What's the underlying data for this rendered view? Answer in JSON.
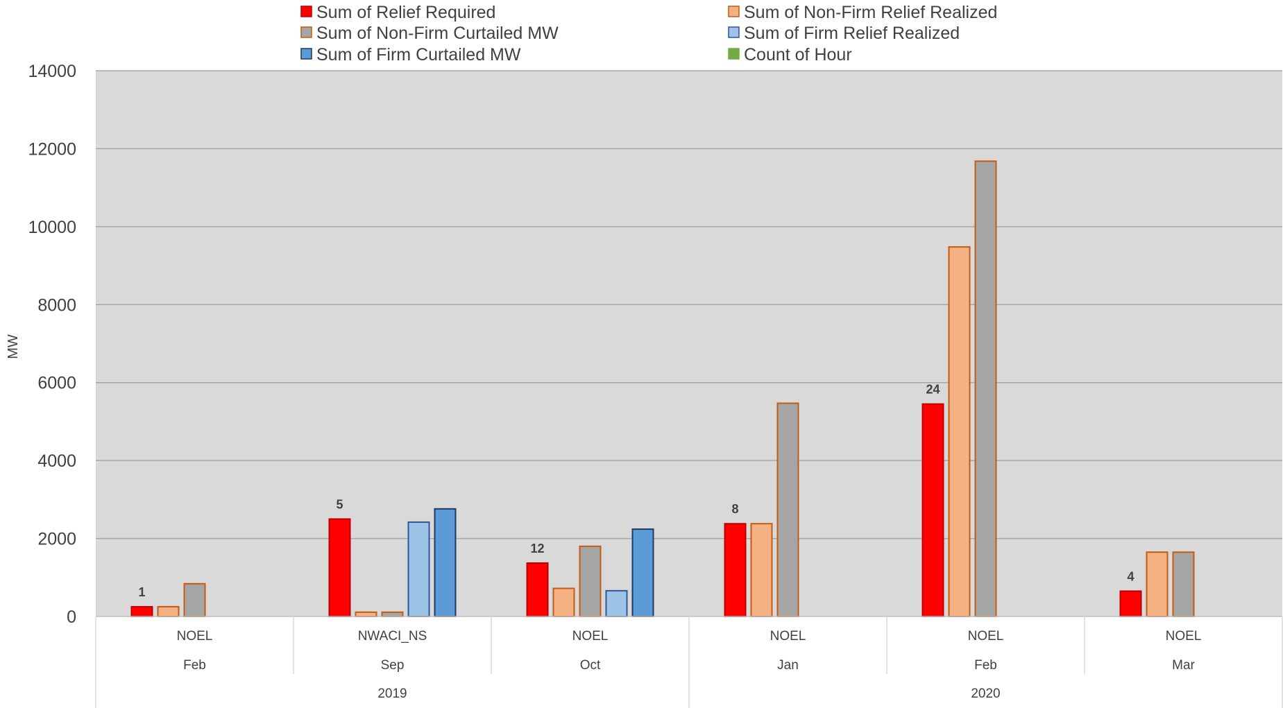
{
  "chart_data": {
    "type": "bar",
    "ylabel": "MW",
    "ylim": [
      0,
      14000
    ],
    "yticks": [
      0,
      2000,
      4000,
      6000,
      8000,
      10000,
      12000,
      14000
    ],
    "grid": true,
    "legend_position": "top",
    "categories": [
      {
        "name": "NOEL",
        "month": "Feb",
        "year": "2019"
      },
      {
        "name": "NWACI_NS",
        "month": "Sep",
        "year": "2019"
      },
      {
        "name": "NOEL",
        "month": "Oct",
        "year": "2019"
      },
      {
        "name": "NOEL",
        "month": "Jan",
        "year": "2020"
      },
      {
        "name": "NOEL",
        "month": "Feb",
        "year": "2020"
      },
      {
        "name": "NOEL",
        "month": "Mar",
        "year": "2020"
      }
    ],
    "years": [
      {
        "label": "2019",
        "span": 3
      },
      {
        "label": "2020",
        "span": 3
      }
    ],
    "series": [
      {
        "name": "Sum of Relief Required",
        "fill": "#ff0000",
        "stroke": "#c00000",
        "values": [
          250,
          2500,
          1370,
          2380,
          5450,
          650
        ]
      },
      {
        "name": "Sum of Non-Firm Relief Realized",
        "fill": "#f4b183",
        "stroke": "#c55a11",
        "values": [
          250,
          110,
          720,
          2380,
          9480,
          1650
        ]
      },
      {
        "name": "Sum of Non-Firm Curtailed MW",
        "fill": "#a5a5a5",
        "stroke": "#c55a11",
        "values": [
          840,
          110,
          1800,
          5470,
          11680,
          1650
        ]
      },
      {
        "name": "Sum of Firm Relief Realized",
        "fill": "#9dc3e6",
        "stroke": "#2f5597",
        "values": [
          0,
          2420,
          660,
          0,
          0,
          0
        ]
      },
      {
        "name": "Sum of Firm Curtailed MW",
        "fill": "#5b9bd5",
        "stroke": "#203864",
        "values": [
          0,
          2760,
          2240,
          0,
          0,
          0
        ]
      },
      {
        "name": "Count of Hour",
        "fill": "#70ad47",
        "stroke": "#70ad47",
        "values": [
          1,
          5,
          12,
          8,
          24,
          4
        ]
      }
    ]
  }
}
